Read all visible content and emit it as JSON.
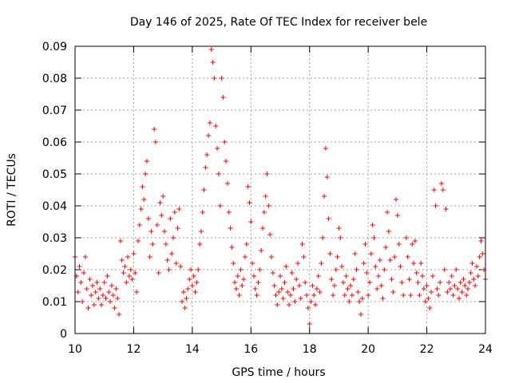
{
  "chart_data": {
    "type": "scatter",
    "title": "Day 146 of 2025, Rate Of TEC Index for receiver bele",
    "xlabel": "GPS time / hours",
    "ylabel": "ROTI / TECUs",
    "xlim": [
      10,
      24
    ],
    "ylim": [
      0,
      0.09
    ],
    "x_ticks": [
      10,
      12,
      14,
      16,
      18,
      20,
      22,
      24
    ],
    "x_tick_labels": [
      "10",
      "12",
      "14",
      "16",
      "18",
      "20",
      "22",
      "24"
    ],
    "y_ticks": [
      0,
      0.01,
      0.02,
      0.03,
      0.04,
      0.05,
      0.06,
      0.07,
      0.08,
      0.09
    ],
    "y_tick_labels": [
      "0",
      "0.01",
      "0.02",
      "0.03",
      "0.04",
      "0.05",
      "0.06",
      "0.07",
      "0.08",
      "0.09"
    ],
    "grid": true,
    "marker": "+",
    "marker_color": "#ff0000",
    "series": [
      {
        "points": [
          [
            10.0,
            0.024
          ],
          [
            10.05,
            0.018
          ],
          [
            10.1,
            0.013
          ],
          [
            10.15,
            0.021
          ],
          [
            10.2,
            0.016
          ],
          [
            10.25,
            0.01
          ],
          [
            10.3,
            0.019
          ],
          [
            10.35,
            0.024
          ],
          [
            10.4,
            0.014
          ],
          [
            10.45,
            0.008
          ],
          [
            10.5,
            0.017
          ],
          [
            10.55,
            0.012
          ],
          [
            10.6,
            0.015
          ],
          [
            10.65,
            0.009
          ],
          [
            10.7,
            0.013
          ],
          [
            10.75,
            0.016
          ],
          [
            10.8,
            0.011
          ],
          [
            10.85,
            0.014
          ],
          [
            10.9,
            0.009
          ],
          [
            10.95,
            0.012
          ],
          [
            11.0,
            0.016
          ],
          [
            11.05,
            0.011
          ],
          [
            11.1,
            0.018
          ],
          [
            11.15,
            0.013
          ],
          [
            11.2,
            0.01
          ],
          [
            11.25,
            0.015
          ],
          [
            11.3,
            0.012
          ],
          [
            11.35,
            0.008
          ],
          [
            11.4,
            0.014
          ],
          [
            11.45,
            0.011
          ],
          [
            11.5,
            0.006
          ],
          [
            11.55,
            0.029
          ],
          [
            11.6,
            0.023
          ],
          [
            11.65,
            0.019
          ],
          [
            11.7,
            0.021
          ],
          [
            11.75,
            0.016
          ],
          [
            11.8,
            0.024
          ],
          [
            11.85,
            0.018
          ],
          [
            11.9,
            0.02
          ],
          [
            11.95,
            0.017
          ],
          [
            12.0,
            0.025
          ],
          [
            12.05,
            0.019
          ],
          [
            12.1,
            0.013
          ],
          [
            12.15,
            0.029
          ],
          [
            12.2,
            0.034
          ],
          [
            12.25,
            0.039
          ],
          [
            12.3,
            0.046
          ],
          [
            12.35,
            0.042
          ],
          [
            12.4,
            0.05
          ],
          [
            12.45,
            0.054
          ],
          [
            12.5,
            0.036
          ],
          [
            12.55,
            0.024
          ],
          [
            12.6,
            0.032
          ],
          [
            12.65,
            0.028
          ],
          [
            12.7,
            0.064
          ],
          [
            12.75,
            0.06
          ],
          [
            12.8,
            0.034
          ],
          [
            12.85,
            0.019
          ],
          [
            12.9,
            0.041
          ],
          [
            12.95,
            0.037
          ],
          [
            13.0,
            0.043
          ],
          [
            13.05,
            0.032
          ],
          [
            13.1,
            0.028
          ],
          [
            13.15,
            0.023
          ],
          [
            13.2,
            0.02
          ],
          [
            13.25,
            0.036
          ],
          [
            13.3,
            0.025
          ],
          [
            13.35,
            0.03
          ],
          [
            13.4,
            0.038
          ],
          [
            13.45,
            0.022
          ],
          [
            13.5,
            0.033
          ],
          [
            13.55,
            0.039
          ],
          [
            13.6,
            0.021
          ],
          [
            13.65,
            0.01
          ],
          [
            13.7,
            0.013
          ],
          [
            13.75,
            0.008
          ],
          [
            13.8,
            0.011
          ],
          [
            13.85,
            0.014
          ],
          [
            13.9,
            0.017
          ],
          [
            13.95,
            0.02
          ],
          [
            14.0,
            0.015
          ],
          [
            14.05,
            0.018
          ],
          [
            14.1,
            0.013
          ],
          [
            14.15,
            0.016
          ],
          [
            14.2,
            0.02
          ],
          [
            14.25,
            0.028
          ],
          [
            14.3,
            0.032
          ],
          [
            14.35,
            0.038
          ],
          [
            14.4,
            0.045
          ],
          [
            14.45,
            0.052
          ],
          [
            14.5,
            0.056
          ],
          [
            14.55,
            0.062
          ],
          [
            14.6,
            0.066
          ],
          [
            14.65,
            0.089
          ],
          [
            14.7,
            0.085
          ],
          [
            14.75,
            0.08
          ],
          [
            14.8,
            0.065
          ],
          [
            14.85,
            0.058
          ],
          [
            14.9,
            0.05
          ],
          [
            14.95,
            0.04
          ],
          [
            15.0,
            0.08
          ],
          [
            15.05,
            0.074
          ],
          [
            15.1,
            0.06
          ],
          [
            15.15,
            0.054
          ],
          [
            15.2,
            0.047
          ],
          [
            15.25,
            0.038
          ],
          [
            15.3,
            0.033
          ],
          [
            15.35,
            0.027
          ],
          [
            15.4,
            0.022
          ],
          [
            15.45,
            0.016
          ],
          [
            15.5,
            0.014
          ],
          [
            15.55,
            0.018
          ],
          [
            15.6,
            0.012
          ],
          [
            15.65,
            0.02
          ],
          [
            15.7,
            0.015
          ],
          [
            15.75,
            0.017
          ],
          [
            15.8,
            0.024
          ],
          [
            15.85,
            0.028
          ],
          [
            15.9,
            0.046
          ],
          [
            15.95,
            0.041
          ],
          [
            16.0,
            0.035
          ],
          [
            16.05,
            0.022
          ],
          [
            16.1,
            0.018
          ],
          [
            16.15,
            0.014
          ],
          [
            16.2,
            0.012
          ],
          [
            16.25,
            0.016
          ],
          [
            16.3,
            0.02
          ],
          [
            16.35,
            0.026
          ],
          [
            16.4,
            0.033
          ],
          [
            16.45,
            0.038
          ],
          [
            16.5,
            0.043
          ],
          [
            16.55,
            0.05
          ],
          [
            16.6,
            0.04
          ],
          [
            16.65,
            0.031
          ],
          [
            16.7,
            0.024
          ],
          [
            16.75,
            0.019
          ],
          [
            16.8,
            0.015
          ],
          [
            16.85,
            0.012
          ],
          [
            16.9,
            0.009
          ],
          [
            16.95,
            0.013
          ],
          [
            17.0,
            0.018
          ],
          [
            17.05,
            0.014
          ],
          [
            17.1,
            0.011
          ],
          [
            17.15,
            0.016
          ],
          [
            17.2,
            0.021
          ],
          [
            17.25,
            0.013
          ],
          [
            17.3,
            0.009
          ],
          [
            17.35,
            0.012
          ],
          [
            17.4,
            0.019
          ],
          [
            17.45,
            0.014
          ],
          [
            17.5,
            0.01
          ],
          [
            17.55,
            0.017
          ],
          [
            17.6,
            0.022
          ],
          [
            17.65,
            0.015
          ],
          [
            17.7,
            0.011
          ],
          [
            17.75,
            0.028
          ],
          [
            17.8,
            0.024
          ],
          [
            17.85,
            0.016
          ],
          [
            17.9,
            0.012
          ],
          [
            17.95,
            0.008
          ],
          [
            18.0,
            0.003
          ],
          [
            18.05,
            0.01
          ],
          [
            18.1,
            0.015
          ],
          [
            18.15,
            0.012
          ],
          [
            18.2,
            0.009
          ],
          [
            18.25,
            0.014
          ],
          [
            18.3,
            0.018
          ],
          [
            18.35,
            0.013
          ],
          [
            18.4,
            0.022
          ],
          [
            18.45,
            0.03
          ],
          [
            18.5,
            0.043
          ],
          [
            18.55,
            0.058
          ],
          [
            18.6,
            0.049
          ],
          [
            18.65,
            0.036
          ],
          [
            18.7,
            0.025
          ],
          [
            18.75,
            0.017
          ],
          [
            18.8,
            0.012
          ],
          [
            18.85,
            0.015
          ],
          [
            18.9,
            0.02
          ],
          [
            18.95,
            0.024
          ],
          [
            19.0,
            0.033
          ],
          [
            19.05,
            0.03
          ],
          [
            19.1,
            0.021
          ],
          [
            19.15,
            0.016
          ],
          [
            19.2,
            0.012
          ],
          [
            19.25,
            0.018
          ],
          [
            19.3,
            0.014
          ],
          [
            19.35,
            0.01
          ],
          [
            19.4,
            0.015
          ],
          [
            19.45,
            0.012
          ],
          [
            19.5,
            0.017
          ],
          [
            19.55,
            0.025
          ],
          [
            19.6,
            0.02
          ],
          [
            19.65,
            0.013
          ],
          [
            19.7,
            0.01
          ],
          [
            19.75,
            0.006
          ],
          [
            19.8,
            0.011
          ],
          [
            19.85,
            0.022
          ],
          [
            19.9,
            0.028
          ],
          [
            19.95,
            0.019
          ],
          [
            20.0,
            0.012
          ],
          [
            20.05,
            0.016
          ],
          [
            20.1,
            0.025
          ],
          [
            20.15,
            0.034
          ],
          [
            20.2,
            0.03
          ],
          [
            20.25,
            0.021
          ],
          [
            20.3,
            0.014
          ],
          [
            20.35,
            0.018
          ],
          [
            20.4,
            0.023
          ],
          [
            20.45,
            0.015
          ],
          [
            20.5,
            0.011
          ],
          [
            20.55,
            0.02
          ],
          [
            20.6,
            0.027
          ],
          [
            20.65,
            0.038
          ],
          [
            20.7,
            0.032
          ],
          [
            20.75,
            0.023
          ],
          [
            20.8,
            0.017
          ],
          [
            20.85,
            0.013
          ],
          [
            20.9,
            0.024
          ],
          [
            20.95,
            0.042
          ],
          [
            21.0,
            0.037
          ],
          [
            21.05,
            0.028
          ],
          [
            21.1,
            0.021
          ],
          [
            21.15,
            0.016
          ],
          [
            21.2,
            0.012
          ],
          [
            21.3,
            0.03
          ],
          [
            21.35,
            0.024
          ],
          [
            21.4,
            0.017
          ],
          [
            21.45,
            0.012
          ],
          [
            21.5,
            0.028
          ],
          [
            21.55,
            0.022
          ],
          [
            21.6,
            0.029
          ],
          [
            21.65,
            0.019
          ],
          [
            21.7,
            0.016
          ],
          [
            21.75,
            0.012
          ],
          [
            21.8,
            0.022
          ],
          [
            21.85,
            0.018
          ],
          [
            21.9,
            0.014
          ],
          [
            21.95,
            0.01
          ],
          [
            22.0,
            0.015
          ],
          [
            22.05,
            0.011
          ],
          [
            22.1,
            0.008
          ],
          [
            22.15,
            0.013
          ],
          [
            22.2,
            0.018
          ],
          [
            22.25,
            0.045
          ],
          [
            22.3,
            0.04
          ],
          [
            22.35,
            0.014
          ],
          [
            22.4,
            0.012
          ],
          [
            22.45,
            0.016
          ],
          [
            22.5,
            0.047
          ],
          [
            22.55,
            0.045
          ],
          [
            22.6,
            0.02
          ],
          [
            22.65,
            0.039
          ],
          [
            22.7,
            0.013
          ],
          [
            22.75,
            0.016
          ],
          [
            22.8,
            0.014
          ],
          [
            22.85,
            0.018
          ],
          [
            22.9,
            0.012
          ],
          [
            22.95,
            0.015
          ],
          [
            23.0,
            0.02
          ],
          [
            23.05,
            0.014
          ],
          [
            23.1,
            0.011
          ],
          [
            23.15,
            0.016
          ],
          [
            23.2,
            0.013
          ],
          [
            23.25,
            0.017
          ],
          [
            23.3,
            0.015
          ],
          [
            23.35,
            0.012
          ],
          [
            23.4,
            0.014
          ],
          [
            23.45,
            0.016
          ],
          [
            23.5,
            0.019
          ],
          [
            23.55,
            0.022
          ],
          [
            23.6,
            0.017
          ],
          [
            23.65,
            0.015
          ],
          [
            23.7,
            0.021
          ],
          [
            23.75,
            0.018
          ],
          [
            23.8,
            0.024
          ],
          [
            23.85,
            0.029
          ],
          [
            23.9,
            0.025
          ],
          [
            23.95,
            0.02
          ],
          [
            24.0,
            0.017
          ]
        ]
      }
    ]
  }
}
